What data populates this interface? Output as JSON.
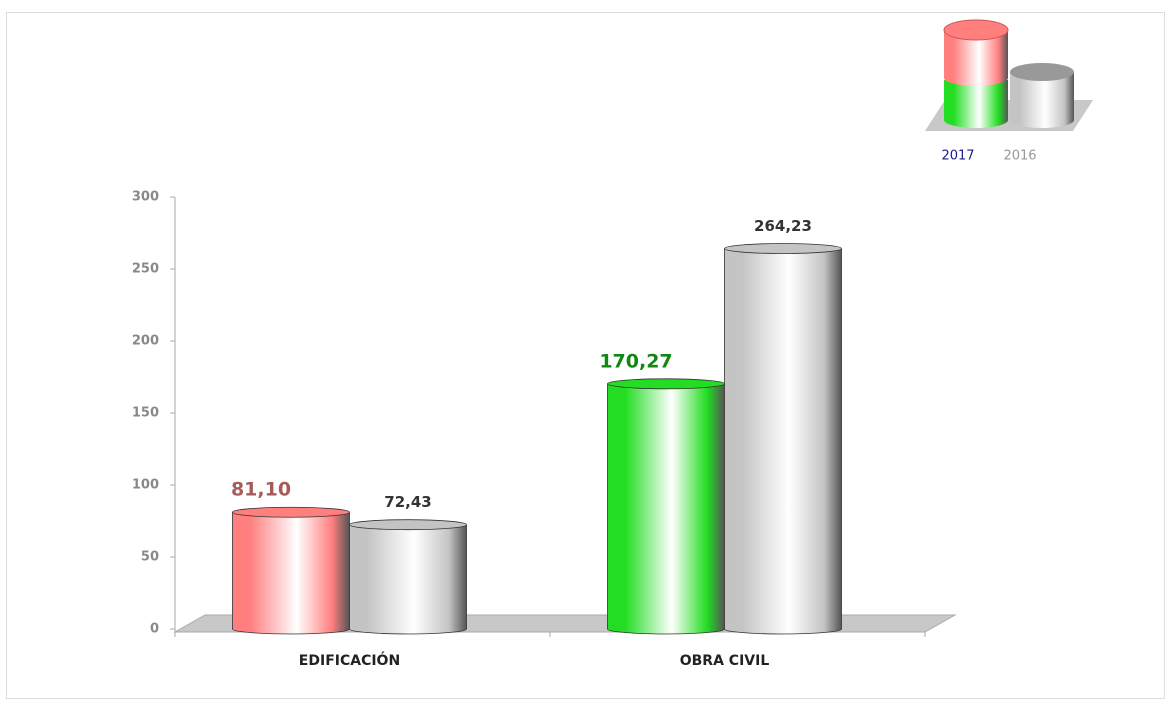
{
  "chart_data": {
    "type": "bar",
    "categories": [
      "EDIFICACIÓN",
      "OBRA CIVIL"
    ],
    "series": [
      {
        "name": "2017",
        "colors": [
          "#ff7f7f",
          "#22dd22"
        ],
        "label_colors": [
          "#a85a5a",
          "#118811"
        ],
        "legend_color": "#1a1a8c",
        "values": [
          81.1,
          170.27
        ],
        "value_labels": [
          "81,10",
          "170,27"
        ]
      },
      {
        "name": "2016",
        "color": "#c4c4c4",
        "label_color": "#333333",
        "legend_color": "#999999",
        "values": [
          72.43,
          264.23
        ],
        "value_labels": [
          "72,43",
          "264,23"
        ]
      }
    ],
    "ylim": [
      0,
      300
    ],
    "yticks": [
      0,
      50,
      100,
      150,
      200,
      250,
      300
    ]
  }
}
